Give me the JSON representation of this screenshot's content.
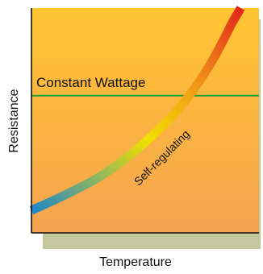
{
  "chart_data": {
    "type": "line",
    "title": "",
    "xlabel": "Temperature",
    "ylabel": "Resistance",
    "xlim": [
      0,
      100
    ],
    "ylim": [
      0,
      100
    ],
    "grid": false,
    "legend": "none",
    "series": [
      {
        "name": "Constant Wattage",
        "color": "#2e9b3c",
        "x": [
          0,
          100
        ],
        "y": [
          61,
          61
        ]
      },
      {
        "name": "Self-regulating",
        "color_gradient": [
          "#1f86c9",
          "#f2e000",
          "#f19a18",
          "#e2261b"
        ],
        "x": [
          0,
          15,
          30,
          45,
          60,
          70,
          78,
          84,
          88,
          92
        ],
        "y": [
          10,
          17,
          25,
          36,
          50,
          62,
          74,
          85,
          93,
          100
        ]
      }
    ],
    "colors": {
      "background_top": "#ffc532",
      "background_bottom": "#f5a350",
      "shadow": "#c5c79f",
      "axes": "#111111"
    }
  }
}
